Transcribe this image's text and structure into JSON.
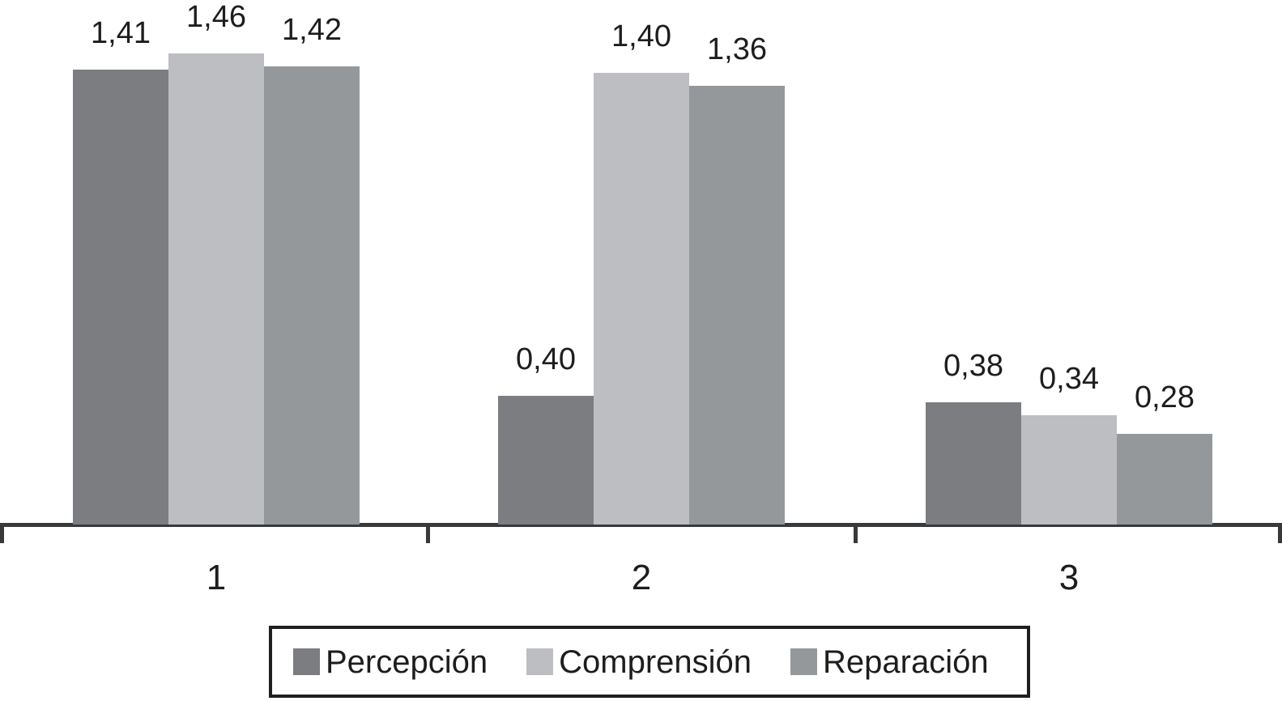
{
  "chart_data": {
    "type": "bar",
    "title": "",
    "xlabel": "",
    "ylabel": "",
    "categories": [
      "1",
      "2",
      "3"
    ],
    "series": [
      {
        "name": "Percepción",
        "color": "#7b7d80",
        "values": [
          1.41,
          0.4,
          0.38
        ],
        "labels": [
          "1,41",
          "0,40",
          "0,38"
        ]
      },
      {
        "name": "Comprensión",
        "color": "#bcbec1",
        "values": [
          1.46,
          1.4,
          0.34
        ],
        "labels": [
          "1,46",
          "1,40",
          "0,34"
        ]
      },
      {
        "name": "Reparación",
        "color": "#95989b",
        "values": [
          1.42,
          1.36,
          0.28
        ],
        "labels": [
          "1,42",
          "1,36",
          "0,28"
        ]
      }
    ],
    "ylim": [
      0,
      1.63
    ],
    "grid": false,
    "y_axis_shown": false,
    "data_labels_shown": true,
    "decimal_separator": ",",
    "legend_position": "bottom",
    "axis_color": "#37393b",
    "text_color": "#1d1d1d",
    "background_color": "#ffffff"
  }
}
